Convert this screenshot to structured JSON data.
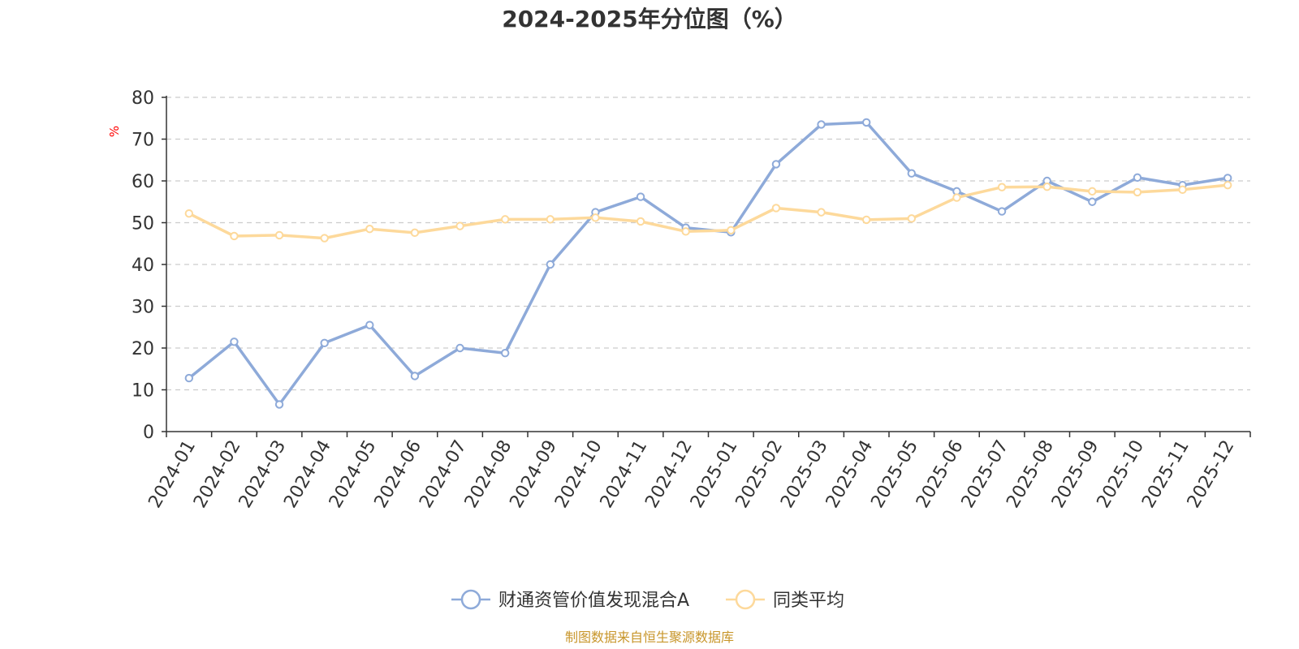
{
  "chart_data": {
    "type": "line",
    "title": "2024-2025年分位图（%）",
    "y_unit": "%",
    "ylim": [
      0,
      80
    ],
    "yticks": [
      "0",
      "10",
      "20",
      "30",
      "40",
      "50",
      "60",
      "70",
      "80"
    ],
    "grid": true,
    "legend_position": "bottom",
    "categories": [
      "2024-01",
      "2024-02",
      "2024-03",
      "2024-04",
      "2024-05",
      "2024-06",
      "2024-07",
      "2024-08",
      "2024-09",
      "2024-10",
      "2024-11",
      "2024-12",
      "2025-01",
      "2025-02",
      "2025-03",
      "2025-04",
      "2025-05",
      "2025-06",
      "2025-07",
      "2025-08",
      "2025-09",
      "2025-10",
      "2025-11",
      "2025-12"
    ],
    "series": [
      {
        "name": "财通资管价值发现混合A",
        "color": "#8eaad9",
        "values": [
          12.8,
          21.5,
          6.5,
          21.2,
          25.5,
          13.3,
          20.0,
          18.8,
          40.0,
          52.5,
          56.2,
          48.8,
          47.7,
          64.0,
          73.5,
          74.0,
          61.8,
          57.5,
          52.7,
          60.0,
          55.0,
          60.8,
          59.0,
          60.7
        ]
      },
      {
        "name": "同类平均",
        "color": "#fdd99b",
        "values": [
          52.2,
          46.8,
          47.0,
          46.3,
          48.5,
          47.6,
          49.2,
          50.8,
          50.8,
          51.2,
          50.3,
          47.9,
          48.2,
          53.5,
          52.5,
          50.7,
          51.0,
          56.0,
          58.5,
          58.6,
          57.5,
          57.3,
          57.9,
          59.0
        ]
      }
    ]
  },
  "source_note": "制图数据来自恒生聚源数据库"
}
